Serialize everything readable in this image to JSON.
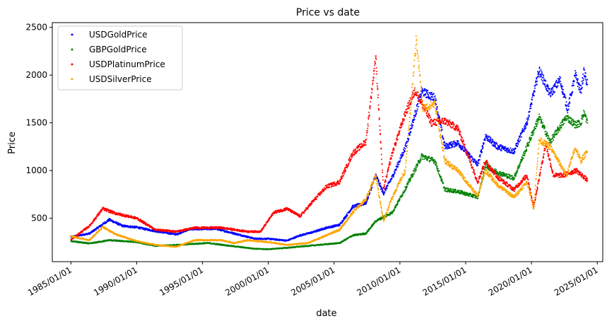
{
  "chart_data": {
    "type": "scatter",
    "title": "Price vs date",
    "xlabel": "date",
    "ylabel": "Price",
    "x_ticks": [
      "1985/01/01",
      "1990/01/01",
      "1995/01/01",
      "2000/01/01",
      "2005/01/01",
      "2010/01/01",
      "2015/01/01",
      "2020/01/01",
      "2025/01/01"
    ],
    "y_ticks": [
      500,
      1000,
      1500,
      2000,
      2500
    ],
    "xlim": [
      "1983/08/01",
      "2025/06/01"
    ],
    "ylim": [
      45,
      2550
    ],
    "legend_position": "top-left",
    "grid": false,
    "series": [
      {
        "name": "USDGoldPrice",
        "color": "#0000ff",
        "points": [
          [
            "1985/01/01",
            305
          ],
          [
            "1986/06/01",
            340
          ],
          [
            "1987/12/01",
            485
          ],
          [
            "1988/12/01",
            420
          ],
          [
            "1990/01/01",
            405
          ],
          [
            "1991/06/01",
            365
          ],
          [
            "1993/01/01",
            330
          ],
          [
            "1994/01/01",
            385
          ],
          [
            "1996/01/01",
            390
          ],
          [
            "1997/06/01",
            340
          ],
          [
            "1999/01/01",
            285
          ],
          [
            "2000/01/01",
            285
          ],
          [
            "2001/06/01",
            265
          ],
          [
            "2002/06/01",
            320
          ],
          [
            "2003/06/01",
            355
          ],
          [
            "2004/06/01",
            400
          ],
          [
            "2005/06/01",
            430
          ],
          [
            "2006/06/01",
            620
          ],
          [
            "2007/06/01",
            660
          ],
          [
            "2008/03/01",
            950
          ],
          [
            "2008/10/01",
            760
          ],
          [
            "2009/06/01",
            930
          ],
          [
            "2010/06/01",
            1240
          ],
          [
            "2011/09/01",
            1830
          ],
          [
            "2012/09/01",
            1760
          ],
          [
            "2013/06/01",
            1250
          ],
          [
            "2014/06/01",
            1290
          ],
          [
            "2015/12/01",
            1060
          ],
          [
            "2016/07/01",
            1360
          ],
          [
            "2017/06/01",
            1250
          ],
          [
            "2018/09/01",
            1200
          ],
          [
            "2019/09/01",
            1510
          ],
          [
            "2020/08/01",
            2050
          ],
          [
            "2021/06/01",
            1800
          ],
          [
            "2022/03/01",
            1950
          ],
          [
            "2022/10/01",
            1640
          ],
          [
            "2023/05/01",
            2000
          ],
          [
            "2023/10/01",
            1830
          ],
          [
            "2024/01/01",
            2040
          ],
          [
            "2024/04/01",
            1900
          ]
        ]
      },
      {
        "name": "GBPGoldPrice",
        "color": "#008000",
        "points": [
          [
            "1985/01/01",
            260
          ],
          [
            "1986/06/01",
            235
          ],
          [
            "1987/12/01",
            270
          ],
          [
            "1990/01/01",
            250
          ],
          [
            "1991/06/01",
            210
          ],
          [
            "1993/01/01",
            220
          ],
          [
            "1995/06/01",
            240
          ],
          [
            "1997/06/01",
            205
          ],
          [
            "1999/01/01",
            180
          ],
          [
            "2000/01/01",
            175
          ],
          [
            "2001/06/01",
            190
          ],
          [
            "2003/01/01",
            210
          ],
          [
            "2005/06/01",
            240
          ],
          [
            "2006/06/01",
            320
          ],
          [
            "2007/06/01",
            340
          ],
          [
            "2008/03/01",
            470
          ],
          [
            "2009/06/01",
            560
          ],
          [
            "2010/06/01",
            810
          ],
          [
            "2011/09/01",
            1150
          ],
          [
            "2012/09/01",
            1100
          ],
          [
            "2013/06/01",
            800
          ],
          [
            "2014/06/01",
            780
          ],
          [
            "2015/12/01",
            720
          ],
          [
            "2016/07/01",
            1050
          ],
          [
            "2017/06/01",
            980
          ],
          [
            "2018/09/01",
            920
          ],
          [
            "2019/09/01",
            1250
          ],
          [
            "2020/08/01",
            1560
          ],
          [
            "2021/06/01",
            1300
          ],
          [
            "2022/09/01",
            1560
          ],
          [
            "2023/05/01",
            1480
          ],
          [
            "2023/10/01",
            1500
          ],
          [
            "2024/01/01",
            1610
          ],
          [
            "2024/04/01",
            1500
          ]
        ]
      },
      {
        "name": "USDPlatinumPrice",
        "color": "#ff0000",
        "points": [
          [
            "1985/01/01",
            275
          ],
          [
            "1986/06/01",
            420
          ],
          [
            "1987/06/01",
            600
          ],
          [
            "1988/06/01",
            550
          ],
          [
            "1990/01/01",
            500
          ],
          [
            "1991/06/01",
            380
          ],
          [
            "1993/01/01",
            360
          ],
          [
            "1994/06/01",
            400
          ],
          [
            "1996/06/01",
            400
          ],
          [
            "1997/06/01",
            380
          ],
          [
            "1998/06/01",
            360
          ],
          [
            "1999/06/01",
            360
          ],
          [
            "2000/06/01",
            560
          ],
          [
            "2001/06/01",
            600
          ],
          [
            "2002/06/01",
            520
          ],
          [
            "2003/06/01",
            680
          ],
          [
            "2004/06/01",
            830
          ],
          [
            "2005/06/01",
            880
          ],
          [
            "2006/06/01",
            1180
          ],
          [
            "2007/06/01",
            1300
          ],
          [
            "2008/03/01",
            2200
          ],
          [
            "2008/10/01",
            800
          ],
          [
            "2009/06/01",
            1180
          ],
          [
            "2010/06/01",
            1600
          ],
          [
            "2011/03/01",
            1840
          ],
          [
            "2012/06/01",
            1500
          ],
          [
            "2013/06/01",
            1520
          ],
          [
            "2014/06/01",
            1440
          ],
          [
            "2015/12/01",
            880
          ],
          [
            "2016/07/01",
            1100
          ],
          [
            "2017/06/01",
            930
          ],
          [
            "2018/09/01",
            800
          ],
          [
            "2019/09/01",
            950
          ],
          [
            "2020/03/01",
            620
          ],
          [
            "2021/02/01",
            1280
          ],
          [
            "2021/09/01",
            950
          ],
          [
            "2022/06/01",
            950
          ],
          [
            "2023/06/01",
            1000
          ],
          [
            "2024/04/01",
            900
          ]
        ]
      },
      {
        "name": "USDSilverPrice",
        "color": "#ffa500",
        "points": [
          [
            "1985/01/01",
            310
          ],
          [
            "1986/06/01",
            270
          ],
          [
            "1987/06/01",
            410
          ],
          [
            "1988/06/01",
            330
          ],
          [
            "1990/01/01",
            260
          ],
          [
            "1991/06/01",
            220
          ],
          [
            "1993/01/01",
            200
          ],
          [
            "1994/06/01",
            270
          ],
          [
            "1996/06/01",
            270
          ],
          [
            "1997/06/01",
            240
          ],
          [
            "1998/06/01",
            270
          ],
          [
            "2000/01/01",
            250
          ],
          [
            "2001/06/01",
            220
          ],
          [
            "2003/01/01",
            240
          ],
          [
            "2004/06/01",
            320
          ],
          [
            "2005/06/01",
            380
          ],
          [
            "2006/06/01",
            560
          ],
          [
            "2007/06/01",
            700
          ],
          [
            "2008/03/01",
            950
          ],
          [
            "2008/10/01",
            470
          ],
          [
            "2009/06/01",
            720
          ],
          [
            "2010/06/01",
            1000
          ],
          [
            "2011/04/01",
            2380
          ],
          [
            "2011/10/01",
            1650
          ],
          [
            "2012/09/01",
            1700
          ],
          [
            "2013/06/01",
            1100
          ],
          [
            "2014/06/01",
            1000
          ],
          [
            "2015/12/01",
            730
          ],
          [
            "2016/07/01",
            1000
          ],
          [
            "2017/06/01",
            850
          ],
          [
            "2018/09/01",
            720
          ],
          [
            "2019/09/01",
            880
          ],
          [
            "2020/03/01",
            600
          ],
          [
            "2020/08/01",
            1320
          ],
          [
            "2021/06/01",
            1250
          ],
          [
            "2022/09/01",
            950
          ],
          [
            "2023/05/01",
            1240
          ],
          [
            "2023/10/01",
            1100
          ],
          [
            "2024/04/01",
            1200
          ]
        ]
      }
    ]
  }
}
